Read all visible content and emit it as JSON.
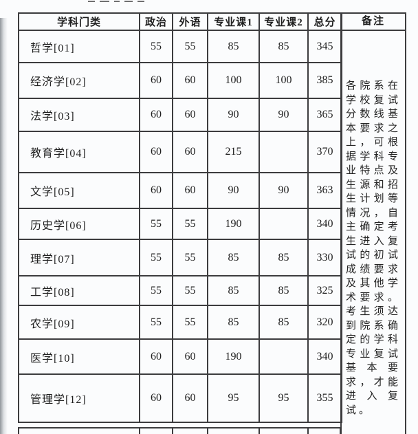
{
  "table": {
    "headers": [
      "学科门类",
      "政治",
      "外语",
      "专业课1",
      "专业课2",
      "总分"
    ],
    "remarks_header": "备注",
    "rows": [
      [
        "哲学[01]",
        "55",
        "55",
        "85",
        "85",
        "345"
      ],
      [
        "经济学[02]",
        "60",
        "60",
        "100",
        "100",
        "385"
      ],
      [
        "法学[03]",
        "60",
        "60",
        "90",
        "90",
        "365"
      ],
      [
        "教育学[04]",
        "60",
        "60",
        "215",
        "",
        "370"
      ],
      [
        "文学[05]",
        "60",
        "60",
        "90",
        "90",
        "363"
      ],
      [
        "历史学[06]",
        "55",
        "55",
        "190",
        "",
        "340"
      ],
      [
        "理学[07]",
        "55",
        "55",
        "85",
        "85",
        "330"
      ],
      [
        "工学[08]",
        "55",
        "55",
        "85",
        "85",
        "325"
      ],
      [
        "农学[09]",
        "55",
        "55",
        "85",
        "85",
        "320"
      ],
      [
        "医学[10]",
        "60",
        "60",
        "190",
        "",
        "340"
      ],
      [
        "管理学[12]",
        "60",
        "60",
        "95",
        "95",
        "355"
      ]
    ],
    "remarks_text": "各院系在学校复试分数线基本要求之上，可根据学科专业特点及生源和招生计划等情况，自主确定考生进入复试的初试成绩要求及其他学术要求。考生须达到院系确定的学科专业复试基本要求，才能进入复试。"
  },
  "colors": {
    "border": "#3c3c3e",
    "background": "#fbfcfd",
    "text": "#1e1e1e"
  }
}
